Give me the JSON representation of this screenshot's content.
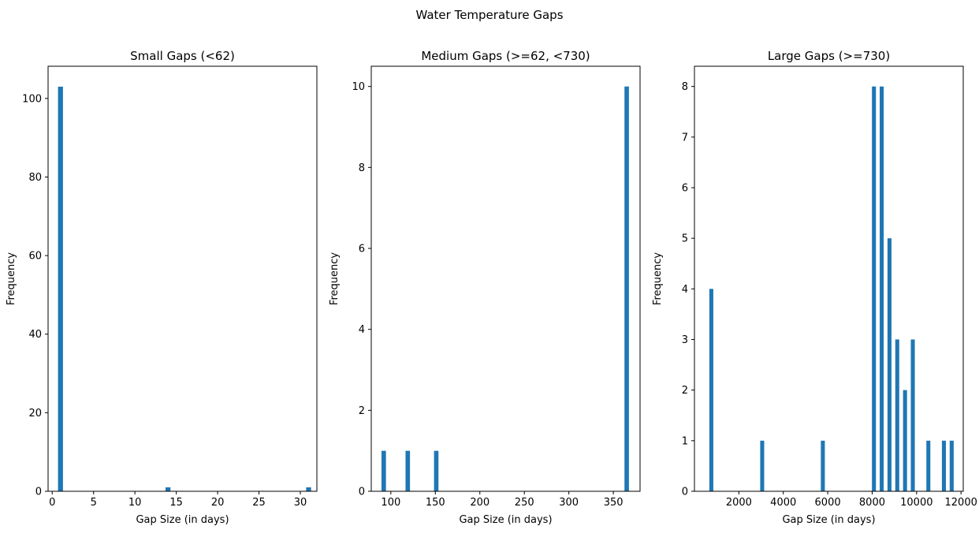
{
  "suptitle": "Water Temperature Gaps",
  "colors": {
    "bar": "#1f77b4",
    "axis": "#000000"
  },
  "chart_data": [
    {
      "type": "bar",
      "title": "Small Gaps (<62)",
      "xlabel": "Gap Size (in days)",
      "ylabel": "Frequency",
      "xlim": [
        -0.5,
        32.0
      ],
      "ylim": [
        0,
        108.2
      ],
      "xticks": [
        0,
        5,
        10,
        15,
        20,
        25,
        30
      ],
      "yticks": [
        0,
        20,
        40,
        60,
        80,
        100
      ],
      "bar_width": 0.6,
      "x": [
        1,
        14,
        31
      ],
      "values": [
        103,
        1,
        1
      ]
    },
    {
      "type": "bar",
      "title": "Medium Gaps (>=62, <730)",
      "xlabel": "Gap Size (in days)",
      "ylabel": "Frequency",
      "xlim": [
        78,
        380
      ],
      "ylim": [
        0,
        10.5
      ],
      "xticks": [
        100,
        150,
        200,
        250,
        300,
        350
      ],
      "yticks": [
        0,
        2,
        4,
        6,
        8,
        10
      ],
      "bar_width": 5,
      "x": [
        92,
        119,
        151,
        365
      ],
      "values": [
        1,
        1,
        1,
        10
      ]
    },
    {
      "type": "bar",
      "title": "Large Gaps (>=730)",
      "xlabel": "Gap Size (in days)",
      "ylabel": "Frequency",
      "xlim": [
        0,
        12100
      ],
      "ylim": [
        0,
        8.4
      ],
      "xticks": [
        2000,
        4000,
        6000,
        8000,
        10000,
        12000
      ],
      "yticks": [
        0,
        1,
        2,
        3,
        4,
        5,
        6,
        7,
        8
      ],
      "bar_width": 180,
      "x": [
        760,
        3050,
        5780,
        8080,
        8430,
        8780,
        9130,
        9480,
        9830,
        10530,
        11230,
        11580
      ],
      "values": [
        4,
        1,
        1,
        8,
        8,
        5,
        3,
        2,
        3,
        1,
        1,
        1
      ]
    }
  ]
}
